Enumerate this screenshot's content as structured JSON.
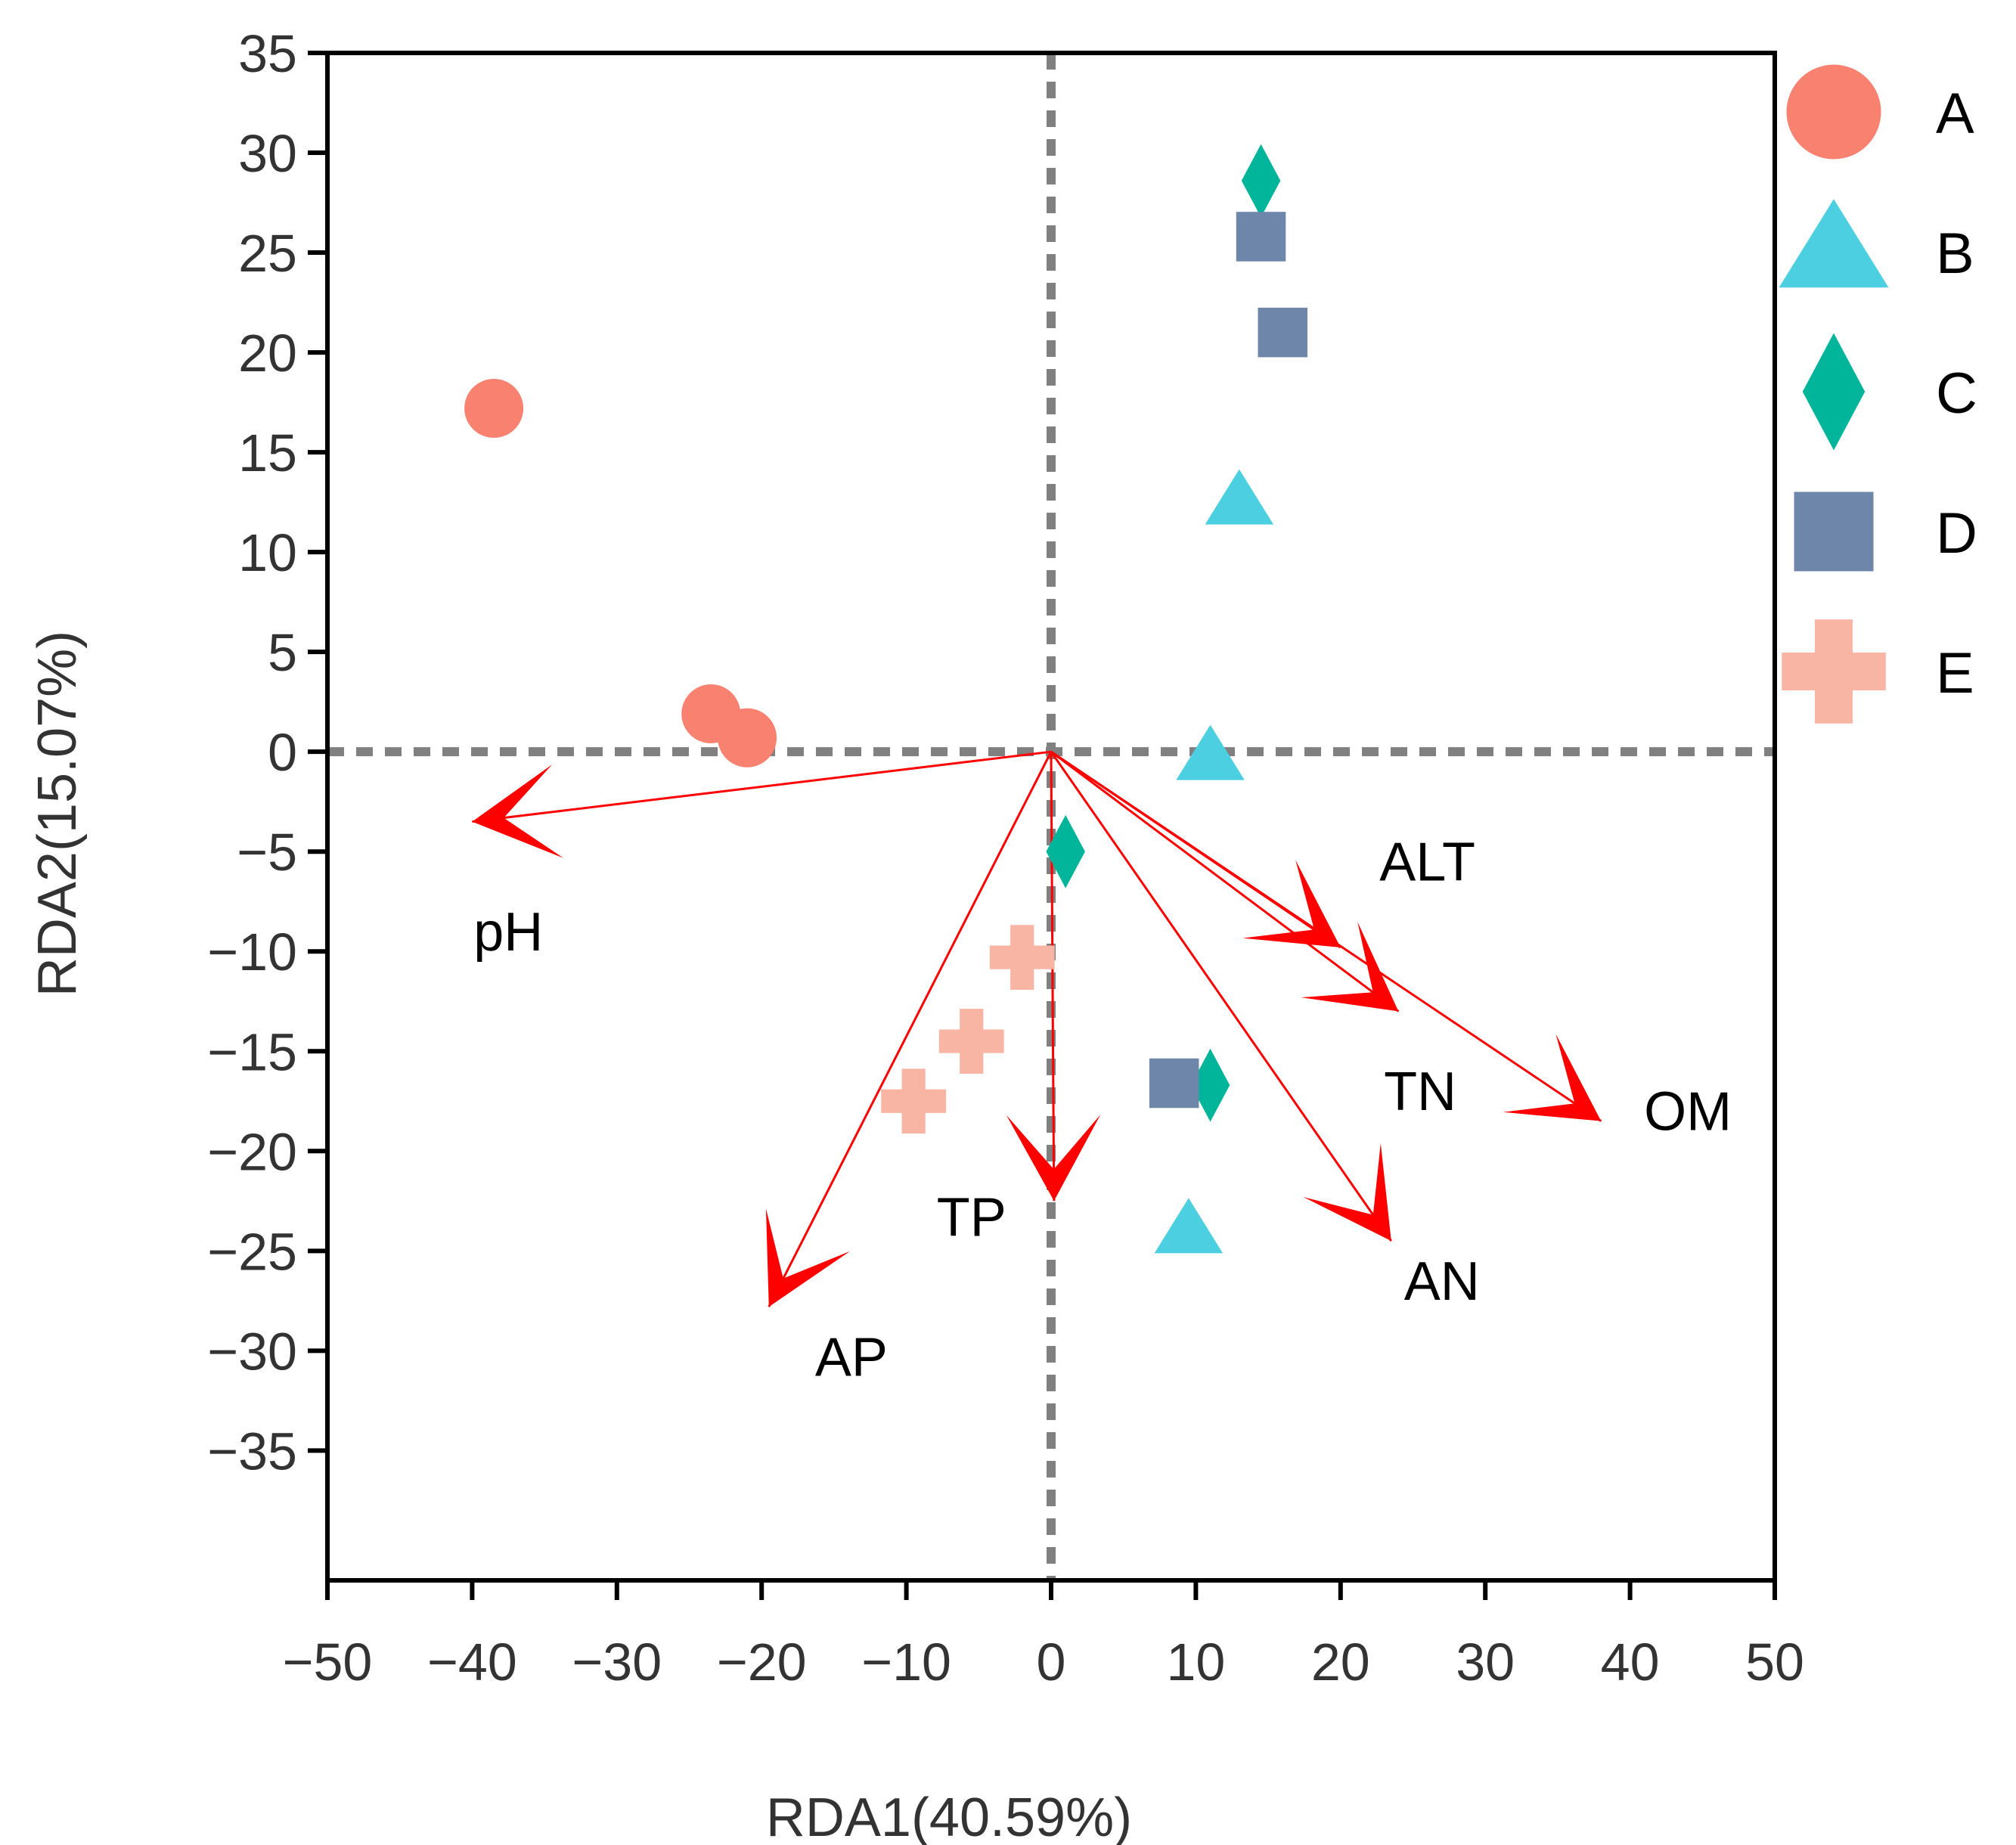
{
  "chart_data": {
    "type": "scatter",
    "subtype": "rda-biplot",
    "xlabel": "RDA1(40.59%)",
    "ylabel": "RDA2(15.07%)",
    "xlim": [
      -50,
      50
    ],
    "ylim": [
      -41.5,
      35
    ],
    "xticks": [
      -50,
      -40,
      -30,
      -20,
      -10,
      0,
      10,
      20,
      30,
      40,
      50
    ],
    "yticks": [
      35,
      30,
      25,
      20,
      15,
      10,
      5,
      0,
      -5,
      -10,
      -15,
      -20,
      -25,
      -30,
      -35
    ],
    "x_tick_labels": [
      "−50",
      "−40",
      "−30",
      "−20",
      "−10",
      "0",
      "10",
      "20",
      "30",
      "40",
      "50"
    ],
    "y_tick_labels": [
      "35",
      "30",
      "25",
      "20",
      "15",
      "10",
      "5",
      "0",
      "−5",
      "−10",
      "−15",
      "−20",
      "−25",
      "−30",
      "−35"
    ],
    "zero_lines": true,
    "legend_position": "right",
    "series": [
      {
        "name": "A",
        "marker": "circle",
        "color": "#f98170",
        "points": [
          [
            -38.5,
            17.2
          ],
          [
            -23.5,
            1.9
          ],
          [
            -21,
            0.7
          ]
        ]
      },
      {
        "name": "B",
        "marker": "triangle",
        "color": "#4ccfe0",
        "points": [
          [
            13,
            12.5
          ],
          [
            11,
            -0.3
          ],
          [
            9.5,
            -24
          ]
        ]
      },
      {
        "name": "C",
        "marker": "diamond",
        "color": "#01b59b",
        "points": [
          [
            14.5,
            28.6
          ],
          [
            1,
            -5
          ],
          [
            11,
            -16.7
          ]
        ]
      },
      {
        "name": "D",
        "marker": "square",
        "color": "#6f86ab",
        "points": [
          [
            14.5,
            25.8
          ],
          [
            16,
            21
          ],
          [
            8.5,
            -16.6
          ]
        ]
      },
      {
        "name": "E",
        "marker": "plus",
        "color": "#f9b5a4",
        "points": [
          [
            -2,
            -10.3
          ],
          [
            -5.5,
            -14.5
          ],
          [
            -9.5,
            -17.5
          ]
        ]
      }
    ],
    "vectors": [
      {
        "name": "pH",
        "end": [
          -40,
          -3.5
        ],
        "label_pos": [
          -37.5,
          -9
        ]
      },
      {
        "name": "ALT",
        "end": [
          20,
          -9.8
        ],
        "label_pos": [
          26,
          -5.5
        ]
      },
      {
        "name": "TN",
        "end": [
          24,
          -13
        ],
        "label_pos": [
          25.5,
          -17
        ]
      },
      {
        "name": "OM",
        "end": [
          38,
          -18.5
        ],
        "label_pos": [
          44,
          -18
        ]
      },
      {
        "name": "AN",
        "end": [
          23.5,
          -24.5
        ],
        "label_pos": [
          27,
          -26.5
        ]
      },
      {
        "name": "TP",
        "end": [
          0.2,
          -22.5
        ],
        "label_pos": [
          -5.5,
          -23.3
        ]
      },
      {
        "name": "AP",
        "end": [
          -19.5,
          -27.8
        ],
        "label_pos": [
          -13.8,
          -30.3
        ]
      }
    ],
    "colors": {
      "vector": "#ff0000",
      "zero_line": "#808080",
      "axis": "#000000"
    }
  }
}
